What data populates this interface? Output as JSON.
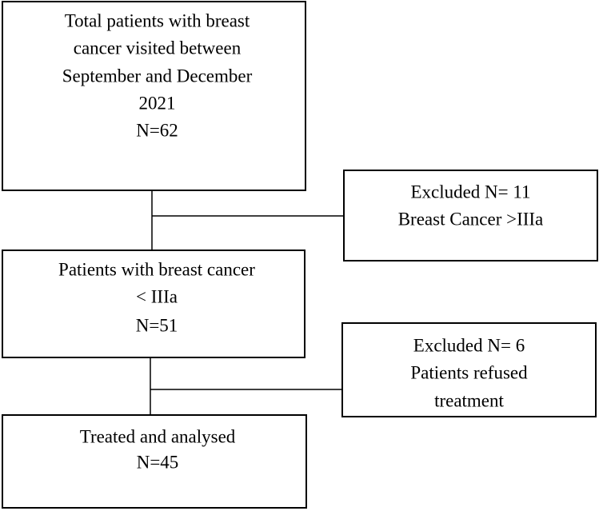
{
  "nodes": [
    {
      "lines": [
        "Total patients with breast",
        "cancer visited between",
        "September and December",
        "2021",
        "N=62"
      ]
    },
    {
      "lines": [
        "Excluded N= 11",
        "Breast Cancer >IIIa"
      ]
    },
    {
      "lines": [
        "Patients with breast cancer",
        "< IIIa",
        "N=51"
      ]
    },
    {
      "lines": [
        "Excluded N= 6",
        "Patients refused",
        "treatment"
      ]
    },
    {
      "lines": [
        "Treated and analysed",
        "N=45"
      ]
    }
  ]
}
